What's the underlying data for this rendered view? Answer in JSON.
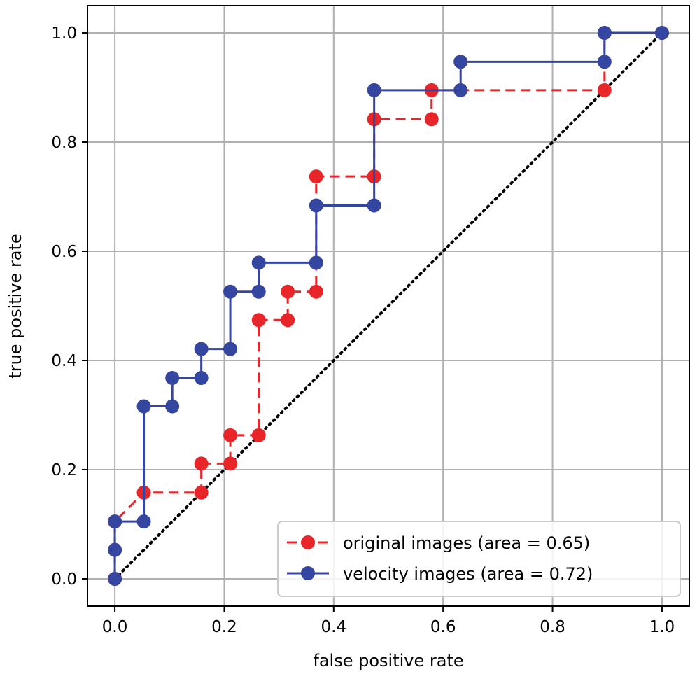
{
  "chart_data": {
    "type": "line",
    "xlabel": "false positive rate",
    "ylabel": "true positive rate",
    "xlim": [
      -0.05,
      1.05
    ],
    "ylim": [
      -0.05,
      1.05
    ],
    "xticks": [
      "0.0",
      "0.2",
      "0.4",
      "0.6",
      "0.8",
      "1.0"
    ],
    "yticks": [
      "0.0",
      "0.2",
      "0.4",
      "0.6",
      "0.8",
      "1.0"
    ],
    "grid": true,
    "legend_position": "bottom-right",
    "series": [
      {
        "name": "original images (area = 0.65)",
        "color": "#e8262a",
        "line_style": "dashed",
        "marker": "circle",
        "x": [
          0.0,
          0.0,
          0.0,
          0.053,
          0.158,
          0.158,
          0.211,
          0.211,
          0.263,
          0.263,
          0.316,
          0.316,
          0.368,
          0.368,
          0.474,
          0.474,
          0.579,
          0.579,
          0.895,
          0.895,
          1.0
        ],
        "y": [
          0.0,
          0.053,
          0.105,
          0.158,
          0.158,
          0.211,
          0.211,
          0.263,
          0.263,
          0.474,
          0.474,
          0.526,
          0.526,
          0.737,
          0.737,
          0.842,
          0.842,
          0.895,
          0.895,
          1.0,
          1.0
        ]
      },
      {
        "name": "velocity images (area = 0.72)",
        "color": "#3546a0",
        "line_style": "solid",
        "marker": "circle",
        "x": [
          0.0,
          0.0,
          0.0,
          0.053,
          0.053,
          0.105,
          0.105,
          0.158,
          0.158,
          0.211,
          0.211,
          0.263,
          0.263,
          0.368,
          0.368,
          0.474,
          0.474,
          0.632,
          0.632,
          0.895,
          0.895,
          1.0
        ],
        "y": [
          0.0,
          0.053,
          0.105,
          0.105,
          0.316,
          0.316,
          0.368,
          0.368,
          0.421,
          0.421,
          0.526,
          0.526,
          0.579,
          0.579,
          0.684,
          0.684,
          0.895,
          0.895,
          0.947,
          0.947,
          1.0,
          1.0
        ]
      },
      {
        "name": "",
        "color": "#000000",
        "line_style": "dotted",
        "marker": "none",
        "x": [
          0.0,
          1.0
        ],
        "y": [
          0.0,
          1.0
        ]
      }
    ]
  }
}
